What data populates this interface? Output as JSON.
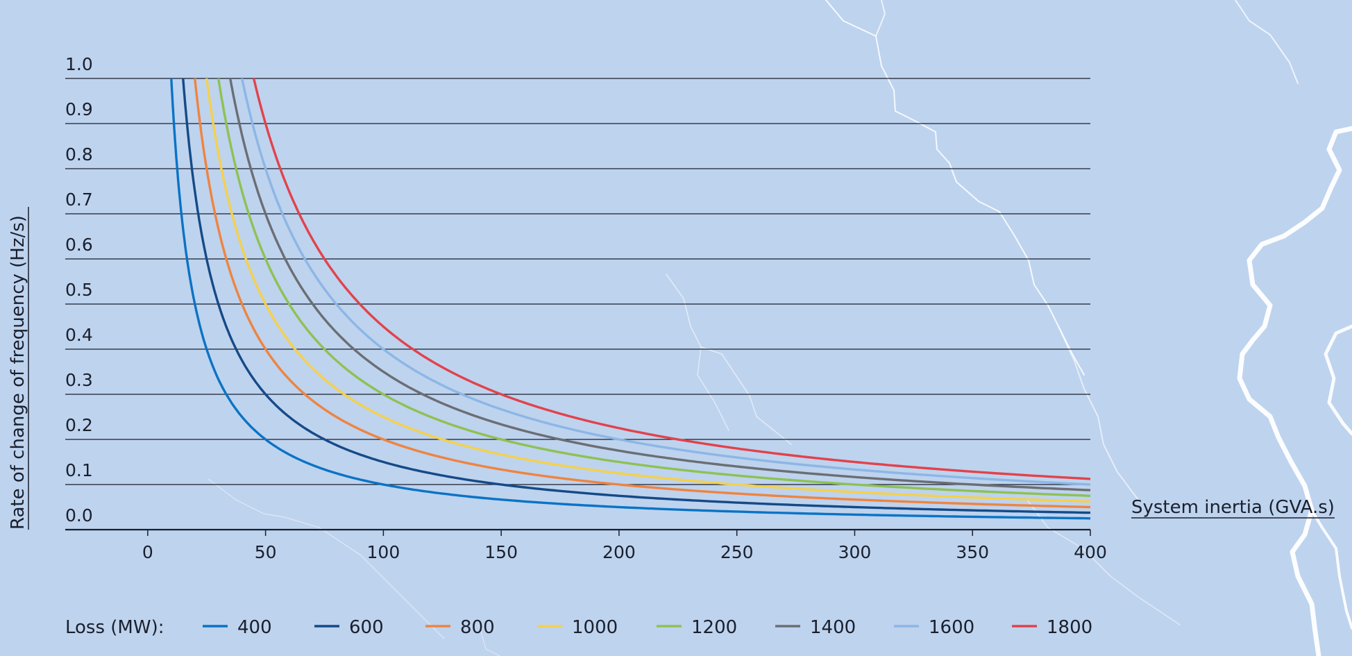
{
  "chart_data": {
    "type": "line",
    "title": "",
    "xlabel": "System inertia (GVA.s)",
    "ylabel": "Rate of change of frequency (Hz/s)",
    "xlim": [
      -35,
      400
    ],
    "ylim": [
      0.0,
      1.0
    ],
    "x_ticks": [
      "0",
      "50",
      "100",
      "150",
      "200",
      "250",
      "300",
      "350",
      "400"
    ],
    "x_tick_values": [
      0,
      50,
      100,
      150,
      200,
      250,
      300,
      350,
      400
    ],
    "y_ticks": [
      "0.0",
      "0.1",
      "0.2",
      "0.3",
      "0.4",
      "0.5",
      "0.6",
      "0.7",
      "0.8",
      "0.9",
      "1.0"
    ],
    "y_tick_values": [
      0.0,
      0.1,
      0.2,
      0.3,
      0.4,
      0.5,
      0.6,
      0.7,
      0.8,
      0.9,
      1.0
    ],
    "grid": true,
    "legend": {
      "title": "Loss (MW):",
      "placement": "bottom"
    },
    "x": [
      10,
      15,
      20,
      25,
      30,
      35,
      40,
      45,
      50,
      60,
      70,
      80,
      90,
      100,
      125,
      150,
      175,
      200,
      250,
      300,
      350,
      400
    ],
    "series": [
      {
        "name": "400",
        "color": "#0a73c5",
        "x_start": 9,
        "values": [
          1.0,
          0.667,
          0.5,
          0.4,
          0.333,
          0.286,
          0.25,
          0.222,
          0.2,
          0.167,
          0.143,
          0.125,
          0.111,
          0.1,
          0.08,
          0.067,
          0.057,
          0.05,
          0.04,
          0.033,
          0.029,
          0.025
        ]
      },
      {
        "name": "600",
        "color": "#154a87",
        "x_start": 15,
        "values": [
          null,
          1.0,
          0.75,
          0.6,
          0.5,
          0.429,
          0.375,
          0.333,
          0.3,
          0.25,
          0.214,
          0.188,
          0.167,
          0.15,
          0.12,
          0.1,
          0.086,
          0.075,
          0.06,
          0.05,
          0.043,
          0.0375
        ]
      },
      {
        "name": "800",
        "color": "#ee8440",
        "x_start": 20,
        "values": [
          null,
          null,
          1.0,
          0.8,
          0.667,
          0.571,
          0.5,
          0.444,
          0.4,
          0.333,
          0.286,
          0.25,
          0.222,
          0.2,
          0.16,
          0.133,
          0.114,
          0.1,
          0.08,
          0.067,
          0.057,
          0.05
        ]
      },
      {
        "name": "1000",
        "color": "#f4d14d",
        "x_start": 25,
        "values": [
          null,
          null,
          null,
          1.0,
          0.833,
          0.714,
          0.625,
          0.556,
          0.5,
          0.417,
          0.357,
          0.313,
          0.278,
          0.25,
          0.2,
          0.167,
          0.143,
          0.125,
          0.1,
          0.083,
          0.071,
          0.0625
        ]
      },
      {
        "name": "1200",
        "color": "#8fc152",
        "x_start": 30,
        "values": [
          null,
          null,
          null,
          null,
          1.0,
          0.857,
          0.75,
          0.667,
          0.6,
          0.5,
          0.429,
          0.375,
          0.333,
          0.3,
          0.24,
          0.2,
          0.171,
          0.15,
          0.12,
          0.1,
          0.086,
          0.075
        ]
      },
      {
        "name": "1400",
        "color": "#6b6e73",
        "x_start": 35,
        "values": [
          null,
          null,
          null,
          null,
          null,
          1.0,
          0.875,
          0.778,
          0.7,
          0.583,
          0.5,
          0.438,
          0.389,
          0.35,
          0.28,
          0.233,
          0.2,
          0.175,
          0.14,
          0.117,
          0.1,
          0.0875
        ]
      },
      {
        "name": "1600",
        "color": "#8cb6e5",
        "x_start": 40,
        "values": [
          null,
          null,
          null,
          null,
          null,
          null,
          1.0,
          0.889,
          0.8,
          0.667,
          0.571,
          0.5,
          0.444,
          0.4,
          0.32,
          0.267,
          0.229,
          0.2,
          0.16,
          0.133,
          0.114,
          0.1
        ]
      },
      {
        "name": "1800",
        "color": "#e2424b",
        "x_start": 45,
        "values": [
          null,
          null,
          null,
          null,
          null,
          null,
          null,
          1.0,
          0.9,
          0.75,
          0.643,
          0.563,
          0.5,
          0.45,
          0.36,
          0.3,
          0.257,
          0.225,
          0.18,
          0.15,
          0.129,
          0.1125
        ]
      }
    ]
  },
  "colors": {
    "background": "#bed3ee",
    "text": "#1a1f2c",
    "grid": "#1a1f2c"
  }
}
